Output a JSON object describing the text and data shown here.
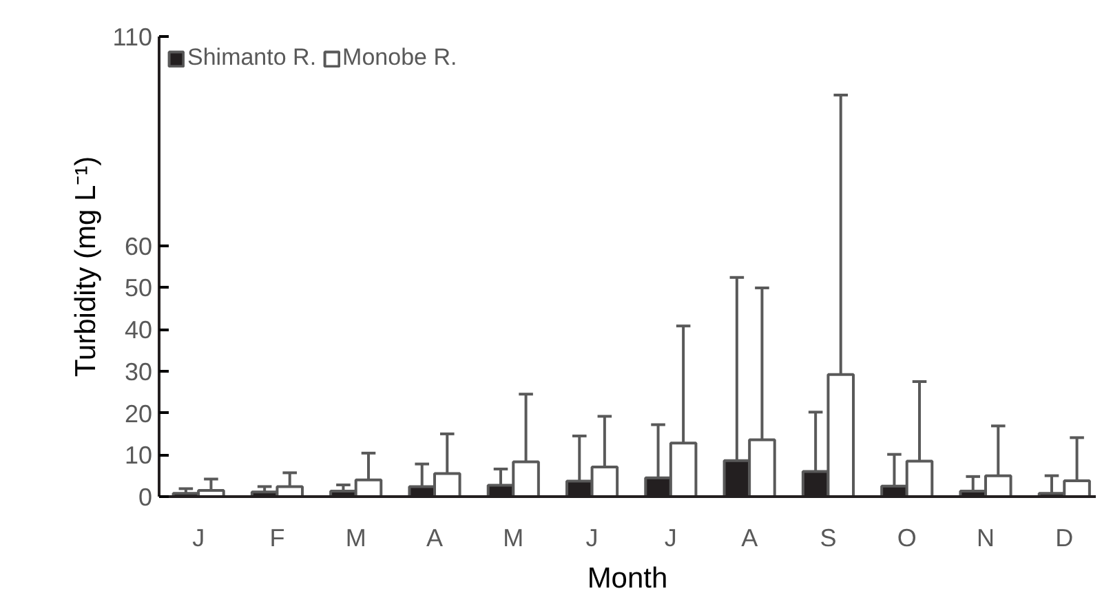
{
  "chart_data": {
    "type": "bar",
    "xlabel": "Month",
    "ylabel": "Turbidity (mg L⁻¹)",
    "categories": [
      "J",
      "F",
      "M",
      "A",
      "M",
      "J",
      "J",
      "A",
      "S",
      "O",
      "N",
      "D"
    ],
    "series": [
      {
        "name": "Shimanto R.",
        "color": "#231f20",
        "values": [
          0.8,
          1.1,
          1.3,
          2.4,
          2.7,
          3.7,
          4.5,
          8.6,
          6.0,
          2.5,
          1.3,
          0.8
        ],
        "errors": [
          [
            0.8,
            1.9
          ],
          [
            1.1,
            2.4
          ],
          [
            1.3,
            2.8
          ],
          [
            2.4,
            7.8
          ],
          [
            2.7,
            6.6
          ],
          [
            3.7,
            14.5
          ],
          [
            4.5,
            17.2
          ],
          [
            8.6,
            52.4
          ],
          [
            6.0,
            20.2
          ],
          [
            2.5,
            10.1
          ],
          [
            1.3,
            4.8
          ],
          [
            0.8,
            5.0
          ]
        ]
      },
      {
        "name": "Monobe R.",
        "color": "#ffffff",
        "values": [
          1.5,
          2.4,
          4.0,
          5.5,
          8.3,
          7.1,
          12.8,
          13.6,
          29.2,
          8.5,
          5.0,
          3.8
        ],
        "errors": [
          [
            1.5,
            4.2
          ],
          [
            2.4,
            5.7
          ],
          [
            4.0,
            10.4
          ],
          [
            5.5,
            15.0
          ],
          [
            8.3,
            24.5
          ],
          [
            7.1,
            19.2
          ],
          [
            12.8,
            40.8
          ],
          [
            13.6,
            49.9
          ],
          [
            29.2,
            96
          ],
          [
            8.5,
            27.5
          ],
          [
            5.0,
            16.9
          ],
          [
            3.8,
            14.1
          ]
        ]
      }
    ],
    "ylim": [
      0,
      110
    ],
    "yticks": [
      0,
      10,
      20,
      30,
      40,
      50,
      60,
      110
    ],
    "legend": "top left"
  }
}
